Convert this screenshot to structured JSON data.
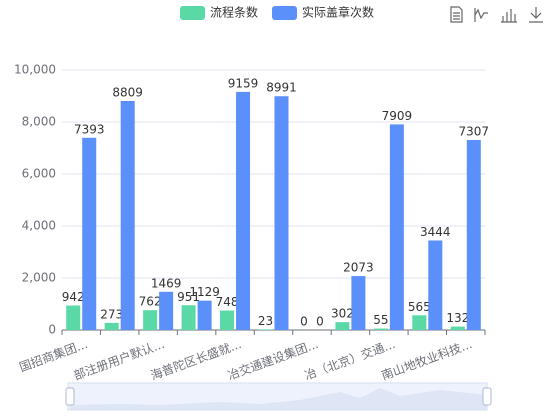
{
  "chart_data": {
    "type": "bar",
    "categories": [
      "国招商集团...",
      null,
      "部注册用户默认...",
      null,
      "海普陀区长盛就...",
      null,
      "冶交通建设集团...",
      null,
      "冶（北京）交通...",
      null,
      "南山地牧业科技..."
    ],
    "series": [
      {
        "name": "流程条数",
        "color": "#5ad8a6",
        "values": [
          942,
          273,
          762,
          951,
          748,
          23,
          0,
          302,
          55,
          565,
          132
        ]
      },
      {
        "name": "实际盖章次数",
        "color": "#5b8ff9",
        "values": [
          7393,
          8809,
          1469,
          1129,
          9159,
          8991,
          0,
          2073,
          7909,
          3444,
          7307
        ]
      }
    ],
    "ylim": [
      0,
      10000
    ],
    "yticks": [
      0,
      {
        "value": 2000,
        "label": "2,000"
      },
      {
        "value": 4000,
        "label": "4,000"
      },
      {
        "value": 6000,
        "label": "6,000"
      },
      {
        "value": 8000,
        "label": "8,000"
      },
      {
        "value": 10000,
        "label": "10,000"
      }
    ],
    "grid": true
  }
}
